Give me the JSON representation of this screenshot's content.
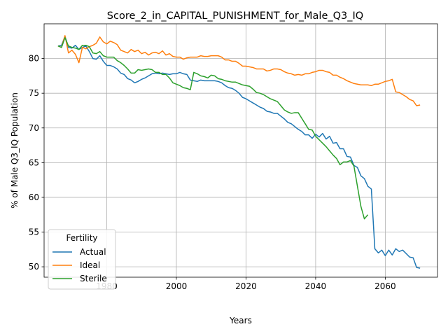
{
  "chart_data": {
    "type": "line",
    "title": "Score_2_in_CAPITAL_PUNISHMENT_for_Male_Q3_IQ",
    "xlabel": "Years",
    "ylabel": "% of Male Q3_IQ Population",
    "xlim": [
      1962,
      2075
    ],
    "ylim": [
      48.5,
      85
    ],
    "xticks": [
      1980,
      2000,
      2020,
      2040,
      2060
    ],
    "yticks": [
      50,
      55,
      60,
      65,
      70,
      75,
      80
    ],
    "grid": true,
    "legend": {
      "title": "Fertility",
      "placement": "lower-left"
    },
    "series": [
      {
        "name": "Actual",
        "color": "#1f77b4",
        "x": [
          1966,
          1967,
          1968,
          1969,
          1970,
          1971,
          1972,
          1973,
          1974,
          1975,
          1976,
          1977,
          1978,
          1979,
          1980,
          1981,
          1982,
          1983,
          1984,
          1985,
          1986,
          1987,
          1988,
          1989,
          1990,
          1991,
          1992,
          1993,
          1994,
          1995,
          1996,
          1997,
          1998,
          1999,
          2000,
          2001,
          2002,
          2003,
          2004,
          2005,
          2006,
          2007,
          2008,
          2009,
          2010,
          2011,
          2012,
          2013,
          2014,
          2015,
          2016,
          2017,
          2018,
          2019,
          2020,
          2021,
          2022,
          2023,
          2024,
          2025,
          2026,
          2027,
          2028,
          2029,
          2030,
          2031,
          2032,
          2033,
          2034,
          2035,
          2036,
          2037,
          2038,
          2039,
          2040,
          2041,
          2042,
          2043,
          2044,
          2045,
          2046,
          2047,
          2048,
          2049,
          2050,
          2051,
          2052,
          2053,
          2054,
          2055,
          2056,
          2057,
          2058,
          2059,
          2060,
          2061,
          2062,
          2063,
          2064,
          2065,
          2066,
          2067,
          2068,
          2069,
          2070
        ],
        "values": [
          81.8,
          81.9,
          83.2,
          81.6,
          81.5,
          81.9,
          81.3,
          81.6,
          81.8,
          81.0,
          80.0,
          79.9,
          80.4,
          79.6,
          79.0,
          79.0,
          78.8,
          78.5,
          77.9,
          77.7,
          77.1,
          76.9,
          76.5,
          76.7,
          77.0,
          77.2,
          77.5,
          77.8,
          77.9,
          77.8,
          77.9,
          77.8,
          77.7,
          77.8,
          77.8,
          78.0,
          77.8,
          77.7,
          76.9,
          76.8,
          76.7,
          76.9,
          76.8,
          76.8,
          76.8,
          76.8,
          76.7,
          76.5,
          76.1,
          75.8,
          75.7,
          75.4,
          75.0,
          74.4,
          74.2,
          73.9,
          73.6,
          73.3,
          73.0,
          72.8,
          72.4,
          72.3,
          72.1,
          72.1,
          71.7,
          71.3,
          70.8,
          70.6,
          70.2,
          69.8,
          69.5,
          69.0,
          69.0,
          68.5,
          69.1,
          68.7,
          69.2,
          68.4,
          68.8,
          67.8,
          67.9,
          67.0,
          67.0,
          65.9,
          65.8,
          64.6,
          64.3,
          63.1,
          62.7,
          61.6,
          61.2,
          52.6,
          52.0,
          52.4,
          51.6,
          52.4,
          51.7,
          52.6,
          52.2,
          52.4,
          51.9,
          51.4,
          51.3,
          49.9,
          49.8
        ]
      },
      {
        "name": "Ideal",
        "color": "#ff7f0e",
        "x": [
          1966,
          1967,
          1968,
          1969,
          1970,
          1971,
          1972,
          1973,
          1974,
          1975,
          1976,
          1977,
          1978,
          1979,
          1980,
          1981,
          1982,
          1983,
          1984,
          1985,
          1986,
          1987,
          1988,
          1989,
          1990,
          1991,
          1992,
          1993,
          1994,
          1995,
          1996,
          1997,
          1998,
          1999,
          2000,
          2001,
          2002,
          2003,
          2004,
          2005,
          2006,
          2007,
          2008,
          2009,
          2010,
          2011,
          2012,
          2013,
          2014,
          2015,
          2016,
          2017,
          2018,
          2019,
          2020,
          2021,
          2022,
          2023,
          2024,
          2025,
          2026,
          2027,
          2028,
          2029,
          2030,
          2031,
          2032,
          2033,
          2034,
          2035,
          2036,
          2037,
          2038,
          2039,
          2040,
          2041,
          2042,
          2043,
          2044,
          2045,
          2046,
          2047,
          2048,
          2049,
          2050,
          2051,
          2052,
          2053,
          2054,
          2055,
          2056,
          2057,
          2058,
          2059,
          2060,
          2061,
          2062,
          2063,
          2064,
          2065,
          2066,
          2067,
          2068,
          2069,
          2070
        ],
        "values": [
          81.8,
          81.6,
          83.3,
          80.8,
          81.2,
          80.6,
          79.4,
          81.6,
          81.4,
          81.7,
          81.9,
          82.2,
          83.1,
          82.4,
          82.1,
          82.5,
          82.3,
          82.0,
          81.2,
          81.0,
          80.8,
          81.3,
          81.0,
          81.2,
          80.7,
          80.9,
          80.5,
          80.8,
          80.9,
          80.7,
          81.1,
          80.5,
          80.7,
          80.3,
          80.2,
          80.2,
          79.9,
          80.1,
          80.2,
          80.2,
          80.2,
          80.4,
          80.3,
          80.3,
          80.4,
          80.4,
          80.4,
          80.2,
          79.8,
          79.8,
          79.6,
          79.6,
          79.3,
          78.9,
          78.9,
          78.8,
          78.7,
          78.5,
          78.5,
          78.5,
          78.2,
          78.3,
          78.5,
          78.5,
          78.4,
          78.1,
          77.9,
          77.8,
          77.6,
          77.7,
          77.6,
          77.8,
          77.8,
          78.0,
          78.1,
          78.3,
          78.3,
          78.1,
          78.0,
          77.6,
          77.6,
          77.3,
          77.1,
          76.8,
          76.6,
          76.4,
          76.3,
          76.2,
          76.2,
          76.2,
          76.1,
          76.3,
          76.3,
          76.5,
          76.7,
          76.8,
          77.0,
          75.2,
          75.1,
          74.8,
          74.5,
          74.1,
          73.9,
          73.2,
          73.3
        ]
      },
      {
        "name": "Sterile",
        "color": "#2ca02c",
        "x": [
          1966,
          1967,
          1968,
          1969,
          1970,
          1971,
          1972,
          1973,
          1974,
          1975,
          1976,
          1977,
          1978,
          1979,
          1980,
          1981,
          1982,
          1983,
          1984,
          1985,
          1986,
          1987,
          1988,
          1989,
          1990,
          1991,
          1992,
          1993,
          1994,
          1995,
          1996,
          1997,
          1998,
          1999,
          2000,
          2001,
          2002,
          2003,
          2004,
          2005,
          2006,
          2007,
          2008,
          2009,
          2010,
          2011,
          2012,
          2013,
          2014,
          2015,
          2016,
          2017,
          2018,
          2019,
          2020,
          2021,
          2022,
          2023,
          2024,
          2025,
          2026,
          2027,
          2028,
          2029,
          2030,
          2031,
          2032,
          2033,
          2034,
          2035,
          2036,
          2037,
          2038,
          2039,
          2040,
          2041,
          2042,
          2043,
          2044,
          2045,
          2046,
          2047,
          2048,
          2049,
          2050,
          2051,
          2052,
          2053,
          2054,
          2055
        ],
        "values": [
          81.8,
          81.6,
          83.0,
          81.8,
          81.6,
          81.5,
          81.3,
          81.9,
          81.9,
          81.7,
          80.8,
          80.7,
          81.0,
          80.4,
          80.2,
          80.2,
          80.2,
          79.7,
          79.4,
          79.0,
          78.5,
          77.9,
          77.9,
          78.4,
          78.3,
          78.4,
          78.5,
          78.4,
          78.0,
          78.0,
          77.7,
          77.7,
          77.2,
          76.5,
          76.3,
          76.1,
          75.8,
          75.7,
          75.5,
          78.0,
          77.8,
          77.5,
          77.4,
          77.2,
          77.6,
          77.5,
          77.1,
          77.0,
          76.8,
          76.7,
          76.6,
          76.6,
          76.4,
          76.2,
          76.1,
          76.0,
          75.6,
          75.1,
          75.0,
          74.8,
          74.5,
          74.2,
          74.0,
          73.8,
          73.2,
          72.6,
          72.3,
          72.1,
          72.2,
          72.2,
          71.4,
          70.6,
          69.8,
          69.7,
          68.8,
          68.3,
          67.8,
          67.3,
          66.7,
          66.1,
          65.6,
          64.7,
          65.1,
          65.1,
          65.3,
          64.5,
          61.6,
          58.7,
          56.9,
          57.5
        ]
      }
    ]
  }
}
